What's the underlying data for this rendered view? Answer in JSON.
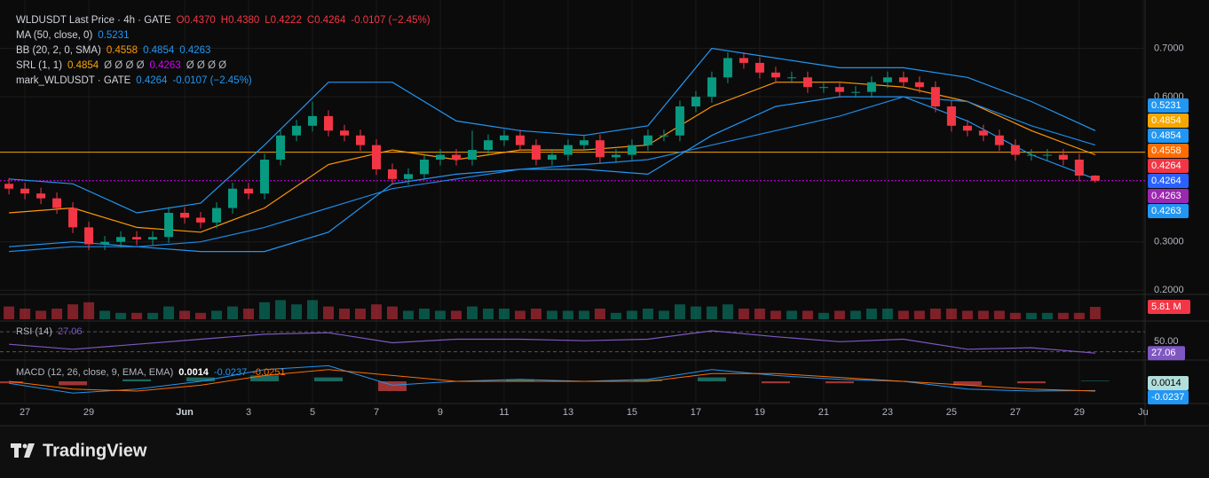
{
  "chart_data": {
    "type": "candlestick",
    "legend": [
      {
        "label": "WLDUSDT Last Price · 4h · GATE",
        "items": [
          {
            "text": "O0.4370",
            "color": "#f23645"
          },
          {
            "text": "H0.4380",
            "color": "#f23645"
          },
          {
            "text": "L0.4222",
            "color": "#f23645"
          },
          {
            "text": "C0.4264",
            "color": "#f23645"
          },
          {
            "text": "-0.0107 (−2.45%)",
            "color": "#f23645"
          }
        ]
      },
      {
        "label": "MA (50, close, 0)",
        "items": [
          {
            "text": "0.5231",
            "color": "#2196f3"
          }
        ]
      },
      {
        "label": "BB (20, 2, 0, SMA)",
        "items": [
          {
            "text": "0.4558",
            "color": "#ff9800"
          },
          {
            "text": "0.4854",
            "color": "#2196f3"
          },
          {
            "text": "0.4263",
            "color": "#2196f3"
          }
        ]
      },
      {
        "label": "SRL (1, 1)",
        "items": [
          {
            "text": "0.4854",
            "color": "#f7a600"
          },
          {
            "text": "Ø Ø Ø Ø",
            "color": "#b2b5be"
          },
          {
            "text": "0.4263",
            "color": "#d500f9"
          },
          {
            "text": "Ø Ø Ø Ø",
            "color": "#b2b5be"
          }
        ]
      },
      {
        "label": "mark_WLDUSDT · GATE",
        "items": [
          {
            "text": "0.4264",
            "color": "#2196f3"
          },
          {
            "text": "-0.0107 (−2.45%)",
            "color": "#2196f3"
          }
        ]
      }
    ],
    "up_color": "#089981",
    "down_color": "#f23645",
    "x": [
      -0.5,
      0,
      0.5,
      1,
      1.5,
      2,
      2.5,
      3,
      3.5,
      4,
      4.5,
      5,
      5.5,
      6,
      6.5,
      7,
      7.5,
      8,
      8.5,
      9,
      9.5,
      10,
      10.5,
      11,
      11.5,
      12,
      12.5,
      13,
      13.5,
      14,
      14.5,
      15,
      15.5,
      16,
      16.5,
      17,
      17.5,
      18,
      18.5,
      19,
      19.5,
      20,
      20.5,
      21,
      21.5,
      22,
      22.5,
      23,
      23.5,
      24,
      24.5,
      25,
      25.5,
      26,
      26.5,
      27,
      27.5,
      28,
      28.5,
      29,
      29.5,
      30,
      30.5,
      31,
      31.5,
      32,
      32.5,
      33,
      33.5
    ],
    "ohlc": [
      [
        0.42,
        0.432,
        0.398,
        0.41
      ],
      [
        0.41,
        0.422,
        0.388,
        0.4
      ],
      [
        0.4,
        0.412,
        0.378,
        0.39
      ],
      [
        0.39,
        0.402,
        0.358,
        0.37
      ],
      [
        0.37,
        0.382,
        0.318,
        0.33
      ],
      [
        0.33,
        0.342,
        0.283,
        0.295
      ],
      [
        0.295,
        0.312,
        0.283,
        0.3
      ],
      [
        0.3,
        0.322,
        0.288,
        0.31
      ],
      [
        0.31,
        0.322,
        0.293,
        0.305
      ],
      [
        0.305,
        0.322,
        0.293,
        0.31
      ],
      [
        0.31,
        0.372,
        0.298,
        0.36
      ],
      [
        0.36,
        0.372,
        0.338,
        0.35
      ],
      [
        0.35,
        0.362,
        0.328,
        0.34
      ],
      [
        0.34,
        0.382,
        0.328,
        0.37
      ],
      [
        0.37,
        0.422,
        0.358,
        0.41
      ],
      [
        0.41,
        0.422,
        0.388,
        0.4
      ],
      [
        0.4,
        0.482,
        0.388,
        0.47
      ],
      [
        0.47,
        0.532,
        0.458,
        0.52
      ],
      [
        0.52,
        0.552,
        0.508,
        0.54
      ],
      [
        0.54,
        0.59,
        0.528,
        0.56
      ],
      [
        0.56,
        0.572,
        0.518,
        0.53
      ],
      [
        0.53,
        0.542,
        0.508,
        0.52
      ],
      [
        0.52,
        0.532,
        0.488,
        0.5
      ],
      [
        0.5,
        0.512,
        0.438,
        0.45
      ],
      [
        0.45,
        0.462,
        0.418,
        0.43
      ],
      [
        0.43,
        0.452,
        0.418,
        0.44
      ],
      [
        0.44,
        0.482,
        0.428,
        0.47
      ],
      [
        0.47,
        0.492,
        0.458,
        0.48
      ],
      [
        0.48,
        0.492,
        0.458,
        0.47
      ],
      [
        0.47,
        0.53,
        0.458,
        0.49
      ],
      [
        0.49,
        0.522,
        0.478,
        0.51
      ],
      [
        0.51,
        0.532,
        0.498,
        0.52
      ],
      [
        0.52,
        0.532,
        0.488,
        0.5
      ],
      [
        0.5,
        0.512,
        0.458,
        0.47
      ],
      [
        0.47,
        0.492,
        0.458,
        0.48
      ],
      [
        0.48,
        0.512,
        0.468,
        0.5
      ],
      [
        0.5,
        0.522,
        0.488,
        0.51
      ],
      [
        0.51,
        0.522,
        0.463,
        0.475
      ],
      [
        0.475,
        0.492,
        0.463,
        0.48
      ],
      [
        0.48,
        0.512,
        0.468,
        0.5
      ],
      [
        0.5,
        0.532,
        0.488,
        0.52
      ],
      [
        0.52,
        0.532,
        0.508,
        0.52
      ],
      [
        0.52,
        0.592,
        0.508,
        0.58
      ],
      [
        0.58,
        0.612,
        0.568,
        0.6
      ],
      [
        0.6,
        0.652,
        0.588,
        0.64
      ],
      [
        0.64,
        0.692,
        0.628,
        0.68
      ],
      [
        0.68,
        0.692,
        0.658,
        0.67
      ],
      [
        0.67,
        0.682,
        0.638,
        0.65
      ],
      [
        0.65,
        0.662,
        0.628,
        0.64
      ],
      [
        0.64,
        0.652,
        0.628,
        0.64
      ],
      [
        0.64,
        0.652,
        0.608,
        0.62
      ],
      [
        0.62,
        0.632,
        0.608,
        0.62
      ],
      [
        0.62,
        0.632,
        0.598,
        0.61
      ],
      [
        0.61,
        0.622,
        0.598,
        0.61
      ],
      [
        0.61,
        0.642,
        0.598,
        0.63
      ],
      [
        0.63,
        0.652,
        0.618,
        0.64
      ],
      [
        0.64,
        0.652,
        0.618,
        0.63
      ],
      [
        0.63,
        0.642,
        0.608,
        0.62
      ],
      [
        0.62,
        0.632,
        0.568,
        0.58
      ],
      [
        0.58,
        0.592,
        0.528,
        0.54
      ],
      [
        0.54,
        0.552,
        0.518,
        0.53
      ],
      [
        0.53,
        0.542,
        0.508,
        0.52
      ],
      [
        0.52,
        0.532,
        0.488,
        0.5
      ],
      [
        0.5,
        0.512,
        0.468,
        0.48
      ],
      [
        0.48,
        0.492,
        0.468,
        0.48
      ],
      [
        0.48,
        0.492,
        0.468,
        0.48
      ],
      [
        0.48,
        0.492,
        0.458,
        0.47
      ],
      [
        0.47,
        0.482,
        0.425,
        0.437
      ],
      [
        0.437,
        0.438,
        0.4222,
        0.4264
      ]
    ],
    "volume": [
      6,
      5,
      4,
      5,
      7,
      8,
      4,
      3,
      3,
      3,
      6,
      4,
      3,
      4,
      6,
      5,
      8,
      9,
      7,
      9,
      6,
      5,
      5,
      7,
      6,
      4,
      5,
      4,
      4,
      6,
      5,
      5,
      4,
      5,
      4,
      4,
      4,
      5,
      3,
      4,
      5,
      4,
      7,
      6,
      6,
      7,
      5,
      5,
      4,
      4,
      4,
      3,
      4,
      4,
      5,
      5,
      4,
      4,
      5,
      5,
      4,
      4,
      4,
      3,
      3,
      3,
      3,
      3,
      5.81
    ],
    "volume_ylim": [
      0,
      10
    ],
    "volume_tag": {
      "value": 5.81,
      "label": "5.81 M",
      "color": "#f23645"
    },
    "xlim": [
      -0.78,
      35.06
    ],
    "xticks": [
      {
        "value": 0,
        "label": "27"
      },
      {
        "value": 2,
        "label": "29"
      },
      {
        "value": 5,
        "label": "Jun"
      },
      {
        "value": 7,
        "label": "3"
      },
      {
        "value": 9,
        "label": "5"
      },
      {
        "value": 11,
        "label": "7"
      },
      {
        "value": 13,
        "label": "9"
      },
      {
        "value": 15,
        "label": "11"
      },
      {
        "value": 17,
        "label": "13"
      },
      {
        "value": 19,
        "label": "15"
      },
      {
        "value": 21,
        "label": "17"
      },
      {
        "value": 23,
        "label": "19"
      },
      {
        "value": 25,
        "label": "21"
      },
      {
        "value": 27,
        "label": "23"
      },
      {
        "value": 29,
        "label": "25"
      },
      {
        "value": 31,
        "label": "27"
      },
      {
        "value": 33,
        "label": "29"
      },
      {
        "value": 35,
        "label": "Ju"
      }
    ],
    "ylim": [
      0.195,
      0.8
    ],
    "yticks": [
      {
        "value": 0.7,
        "label": "0.7000"
      },
      {
        "value": 0.6,
        "label": "0.6000"
      },
      {
        "value": 0.3,
        "label": "0.3000"
      },
      {
        "value": 0.2,
        "label": "0.2000"
      }
    ],
    "grid": true,
    "indicator_x": [
      -0.5,
      1.5,
      3.5,
      5.5,
      7.5,
      9.5,
      11.5,
      13.5,
      15.5,
      17.5,
      19.5,
      21.5,
      23.5,
      25.5,
      27.5,
      29.5,
      31.5,
      33.5
    ],
    "overlays": [
      {
        "color": "#2196f3",
        "values": [
          0.43,
          0.42,
          0.36,
          0.38,
          0.5,
          0.63,
          0.63,
          0.55,
          0.53,
          0.52,
          0.54,
          0.7,
          0.68,
          0.66,
          0.66,
          0.64,
          0.59,
          0.53
        ]
      },
      {
        "color": "#ff9800",
        "values": [
          0.36,
          0.37,
          0.33,
          0.32,
          0.37,
          0.46,
          0.49,
          0.47,
          0.49,
          0.49,
          0.5,
          0.58,
          0.63,
          0.63,
          0.62,
          0.59,
          0.53,
          0.48
        ]
      },
      {
        "color": "#2196f3",
        "values": [
          0.29,
          0.3,
          0.29,
          0.28,
          0.28,
          0.32,
          0.42,
          0.44,
          0.45,
          0.45,
          0.44,
          0.52,
          0.58,
          0.6,
          0.6,
          0.55,
          0.48,
          0.43
        ]
      },
      {
        "color": "#1e88e5",
        "values": [
          0.28,
          0.29,
          0.29,
          0.3,
          0.33,
          0.37,
          0.41,
          0.43,
          0.45,
          0.46,
          0.47,
          0.5,
          0.53,
          0.56,
          0.6,
          0.59,
          0.54,
          0.5
        ]
      }
    ],
    "hlines": [
      {
        "value": 0.4854,
        "color": "#f7a600",
        "dash": "none"
      },
      {
        "value": 0.4264,
        "color": "#d500f9",
        "dash": "2 2"
      }
    ],
    "price_tags": [
      {
        "value": 0.5231,
        "color": "#2196f3"
      },
      {
        "value": 0.4854,
        "color": "#f7a600"
      },
      {
        "value": 0.4854,
        "color": "#2196f3"
      },
      {
        "value": 0.4558,
        "color": "#ff6d00"
      },
      {
        "value": 0.4264,
        "color": "#f23645"
      },
      {
        "value": 0.4264,
        "color": "#2962ff"
      },
      {
        "value": 0.4263,
        "color": "#9c27b0"
      },
      {
        "value": 0.4263,
        "color": "#2196f3"
      }
    ],
    "rsi": {
      "legend": "RSI (14)",
      "legend_value": "27.06",
      "color": "#7e57c2",
      "values": [
        45,
        35,
        45,
        55,
        65,
        68,
        48,
        55,
        55,
        52,
        55,
        72,
        60,
        50,
        55,
        35,
        38,
        27.06
      ],
      "ylim": [
        15,
        88
      ],
      "yticks": [
        {
          "value": 50,
          "label": "50.00"
        }
      ],
      "bands": [
        30,
        70
      ],
      "tag": 27.06
    },
    "macd": {
      "legend": "MACD (12, 26, close, 9, EMA, EMA)",
      "legend_values": [
        {
          "text": "0.0014",
          "color": "#ffffff"
        },
        {
          "text": "-0.0237",
          "color": "#2196f3"
        },
        {
          "text": "-0.0251",
          "color": "#ff6d00"
        }
      ],
      "macd": [
        -0.005,
        -0.03,
        -0.02,
        0,
        0.03,
        0.04,
        -0.01,
        0,
        0.005,
        0,
        0.005,
        0.03,
        0.015,
        0.005,
        0,
        -0.02,
        -0.025,
        -0.0237
      ],
      "signal": [
        0,
        -0.02,
        -0.025,
        -0.01,
        0.015,
        0.03,
        0.015,
        0,
        0,
        0,
        0,
        0.02,
        0.02,
        0.01,
        0,
        -0.01,
        -0.02,
        -0.0251
      ],
      "hist": [
        -0.005,
        -0.01,
        0.005,
        0.01,
        0.015,
        0.01,
        -0.025,
        0,
        0.005,
        0,
        0.005,
        0.01,
        -0.005,
        -0.005,
        0,
        -0.01,
        -0.005,
        0.0014
      ],
      "macd_color": "#2196f3",
      "signal_color": "#ff6d00",
      "hist_colors": [
        "#26a69a",
        "#ff5252"
      ],
      "ylim": [
        -0.05,
        0.05
      ],
      "tags": [
        {
          "value": 0.0014,
          "color": "#b2dfdb"
        },
        {
          "value": -0.0237,
          "color": "#2196f3"
        }
      ]
    }
  },
  "brand": "TradingView"
}
